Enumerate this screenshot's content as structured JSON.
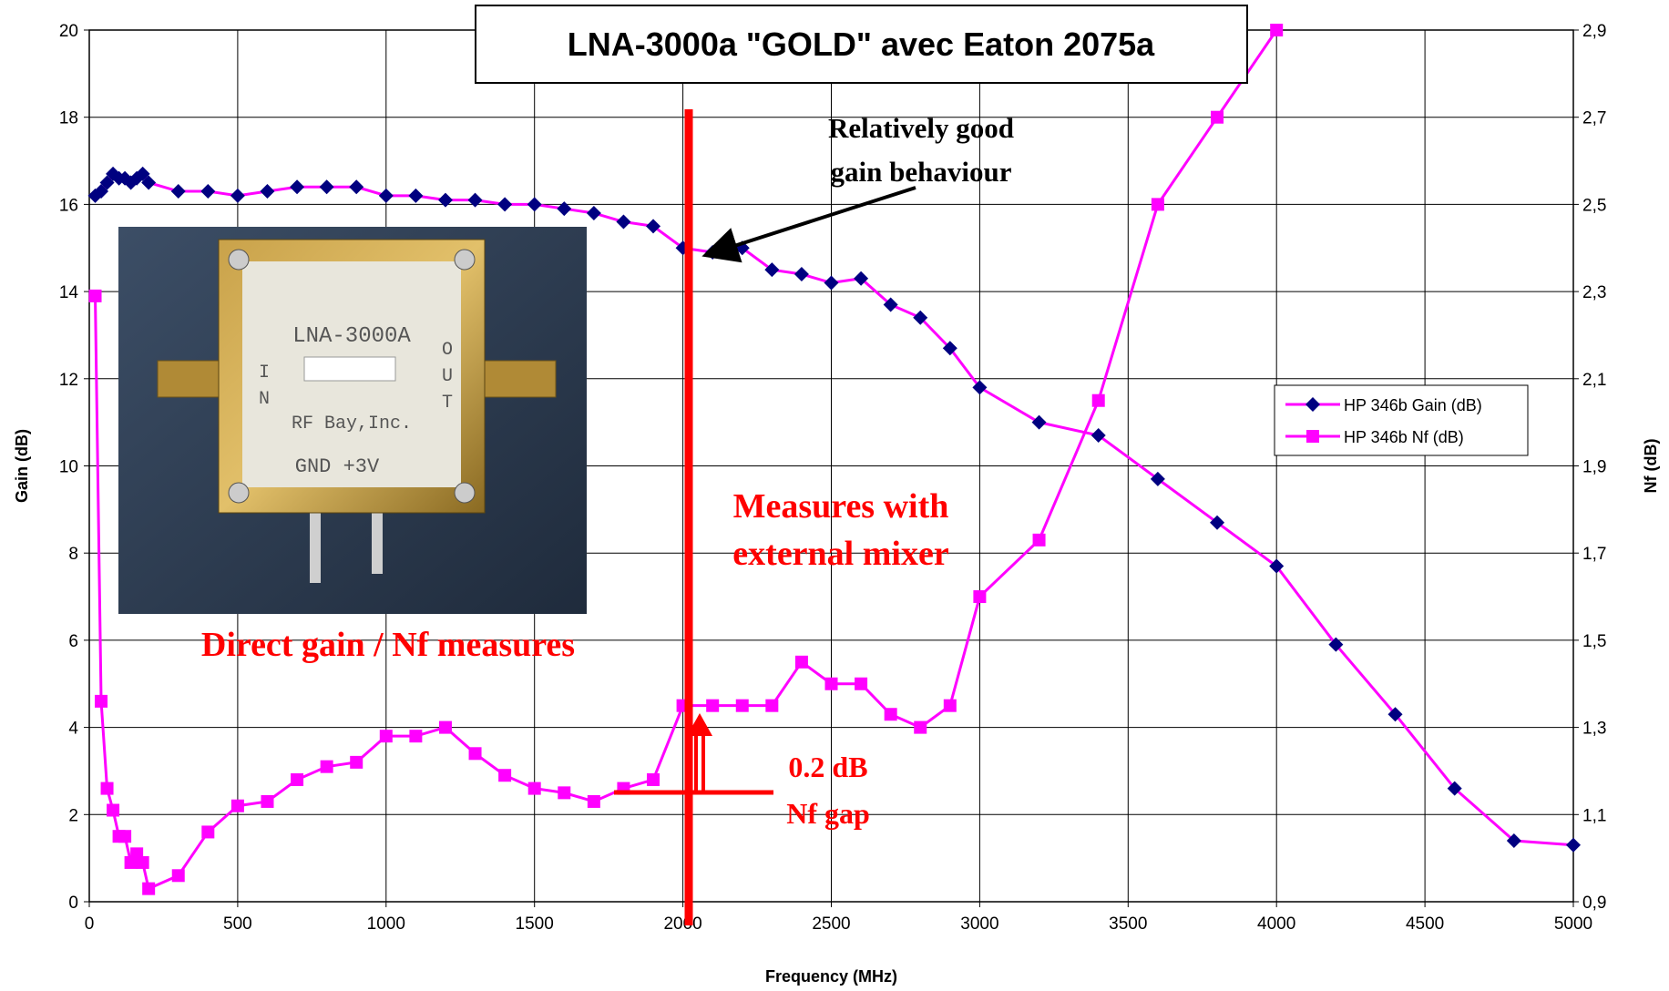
{
  "chart_data": {
    "type": "line",
    "title": "LNA-3000a \"GOLD\" avec Eaton 2075a",
    "x_label": "Frequency (MHz)",
    "y_label": "Gain (dB)",
    "y2_label": "Nf (dB)",
    "xlim": [
      0,
      5000
    ],
    "xticks": [
      0,
      500,
      1000,
      1500,
      2000,
      2500,
      3000,
      3500,
      4000,
      4500,
      5000
    ],
    "ylim": [
      0,
      20
    ],
    "yticks": [
      0,
      2,
      4,
      6,
      8,
      10,
      12,
      14,
      16,
      18,
      20
    ],
    "y2lim": [
      0.9,
      2.9
    ],
    "y2ticks": [
      {
        "value": 0.9,
        "label": "0,9"
      },
      {
        "value": 1.1,
        "label": "1,1"
      },
      {
        "value": 1.3,
        "label": "1,3"
      },
      {
        "value": 1.5,
        "label": "1,5"
      },
      {
        "value": 1.7,
        "label": "1,7"
      },
      {
        "value": 1.9,
        "label": "1,9"
      },
      {
        "value": 2.1,
        "label": "2,1"
      },
      {
        "value": 2.3,
        "label": "2,3"
      },
      {
        "value": 2.5,
        "label": "2,5"
      },
      {
        "value": 2.7,
        "label": "2,7"
      },
      {
        "value": 2.9,
        "label": "2,9"
      }
    ],
    "grid": true,
    "legend": "right",
    "series": [
      {
        "name": "HP 346b Gain (dB)",
        "color": "#ff00ff",
        "marker": "diamond",
        "marker_color": "#000080",
        "x": [
          20,
          40,
          60,
          80,
          100,
          120,
          140,
          160,
          180,
          200,
          300,
          400,
          500,
          600,
          700,
          800,
          900,
          1000,
          1100,
          1200,
          1300,
          1400,
          1500,
          1600,
          1700,
          1800,
          1900,
          2000,
          2100,
          2200,
          2300,
          2400,
          2500,
          2600,
          2700,
          2800,
          2900,
          3000,
          3200,
          3400,
          3600,
          3800,
          4000,
          4200,
          4400,
          4600,
          4800,
          5000
        ],
        "values": [
          16.2,
          16.3,
          16.5,
          16.7,
          16.6,
          16.6,
          16.5,
          16.6,
          16.7,
          16.5,
          16.3,
          16.3,
          16.2,
          16.3,
          16.4,
          16.4,
          16.4,
          16.2,
          16.2,
          16.1,
          16.1,
          16.0,
          16.0,
          15.9,
          15.8,
          15.6,
          15.5,
          15.0,
          14.9,
          15.0,
          14.5,
          14.4,
          14.2,
          14.3,
          13.7,
          13.4,
          12.7,
          11.8,
          11.0,
          10.7,
          9.7,
          8.7,
          7.7,
          5.9,
          4.3,
          2.6,
          1.4,
          1.3
        ]
      },
      {
        "name": "HP 346b Nf (dB)",
        "color": "#ff00ff",
        "marker": "square",
        "marker_color": "#ff00ff",
        "axis": "y2",
        "x": [
          20,
          40,
          60,
          80,
          100,
          120,
          140,
          160,
          180,
          200,
          300,
          400,
          500,
          600,
          700,
          800,
          900,
          1000,
          1100,
          1200,
          1300,
          1400,
          1500,
          1600,
          1700,
          1800,
          1900,
          2000,
          2100,
          2200,
          2300,
          2400,
          2500,
          2600,
          2700,
          2800,
          2900,
          3000,
          3200,
          3400,
          3600,
          3800,
          4000
        ],
        "values": [
          2.29,
          1.36,
          1.16,
          1.11,
          1.05,
          1.05,
          0.99,
          1.01,
          0.99,
          0.93,
          0.96,
          1.06,
          1.12,
          1.13,
          1.18,
          1.21,
          1.22,
          1.28,
          1.28,
          1.3,
          1.24,
          1.19,
          1.16,
          1.15,
          1.13,
          1.16,
          1.18,
          1.35,
          1.35,
          1.35,
          1.35,
          1.45,
          1.4,
          1.4,
          1.33,
          1.3,
          1.35,
          1.6,
          1.73,
          2.05,
          2.5,
          2.7,
          2.9
        ]
      }
    ],
    "annotations": {
      "good_gain": [
        "Relatively good",
        "gain behaviour"
      ],
      "external": [
        "Measures with",
        "external mixer"
      ],
      "direct": "Direct gain / Nf measures",
      "gap": [
        "0.2 dB",
        "Nf gap"
      ]
    },
    "inset_labels": [
      "LNA-3000A",
      "IN",
      "OUT",
      "RF Bay,Inc.",
      "GND +3V"
    ]
  }
}
